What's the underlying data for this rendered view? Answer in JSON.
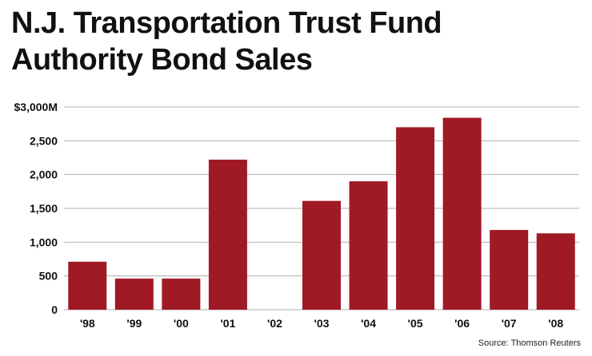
{
  "chart_data": {
    "type": "bar",
    "title_lines": [
      "N.J. Transportation Trust Fund",
      "Authority Bond Sales"
    ],
    "categories": [
      "'98",
      "'99",
      "'00",
      "'01",
      "'02",
      "'03",
      "'04",
      "'05",
      "'06",
      "'07",
      "'08"
    ],
    "values": [
      710,
      460,
      460,
      2220,
      0,
      1610,
      1900,
      2700,
      2840,
      1180,
      1130
    ],
    "yticks": [
      {
        "value": 0,
        "label": "0"
      },
      {
        "value": 500,
        "label": "500"
      },
      {
        "value": 1000,
        "label": "1,000"
      },
      {
        "value": 1500,
        "label": "1,500"
      },
      {
        "value": 2000,
        "label": "2,000"
      },
      {
        "value": 2500,
        "label": "2,500"
      },
      {
        "value": 3000,
        "label": "$3,000M"
      }
    ],
    "ylim": [
      0,
      3000
    ],
    "grid": true,
    "bar_color": "#a01a26",
    "grid_color": "#b0b0b0",
    "source": "Source: Thomson Reuters"
  }
}
